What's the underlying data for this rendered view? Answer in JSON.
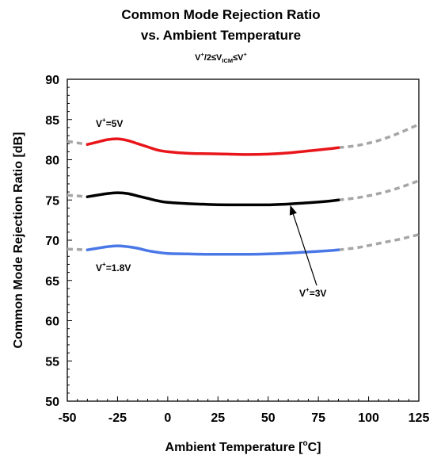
{
  "chart_data": {
    "type": "line",
    "title_line1": "Common Mode Rejection Ratio",
    "title_line2": "vs. Ambient Temperature",
    "subtitle": {
      "p1": "V",
      "p2": "+",
      "p3": "/2≤V",
      "p4": "ICM",
      "p5": "≤V",
      "p6": "+"
    },
    "xlabel": {
      "main": "Ambient Temperature [",
      "sup": "o",
      "tail": "C]"
    },
    "ylabel": "Common Mode Rejection Ratio [dB]",
    "xlim": [
      -50,
      125
    ],
    "ylim": [
      50,
      90
    ],
    "xticks": [
      "-50",
      "-25",
      "0",
      "25",
      "50",
      "75",
      "100",
      "125"
    ],
    "yticks": [
      "50",
      "55",
      "60",
      "65",
      "70",
      "75",
      "80",
      "85",
      "90"
    ],
    "grid": false,
    "series": [
      {
        "name": "V+=5V",
        "color": "#e8161b",
        "x": [
          -40,
          -35,
          -30,
          -25,
          -20,
          -15,
          -10,
          -5,
          0,
          10,
          20,
          30,
          40,
          50,
          60,
          70,
          80,
          85
        ],
        "y": [
          81.9,
          82.2,
          82.5,
          82.6,
          82.4,
          82.0,
          81.6,
          81.2,
          81.0,
          80.8,
          80.75,
          80.7,
          80.65,
          80.7,
          80.85,
          81.1,
          81.35,
          81.5
        ],
        "extrap_low": {
          "x": [
            -50,
            -45,
            -40
          ],
          "y": [
            82.3,
            82.1,
            81.9
          ]
        },
        "extrap_high": {
          "x": [
            85,
            95,
            105,
            115,
            125
          ],
          "y": [
            81.5,
            81.8,
            82.4,
            83.3,
            84.4
          ]
        }
      },
      {
        "name": "V+=3V",
        "color": "#000000",
        "x": [
          -40,
          -35,
          -30,
          -25,
          -20,
          -15,
          -10,
          -5,
          0,
          10,
          20,
          30,
          40,
          50,
          60,
          70,
          80,
          85
        ],
        "y": [
          75.4,
          75.6,
          75.8,
          75.9,
          75.8,
          75.5,
          75.2,
          74.9,
          74.7,
          74.55,
          74.45,
          74.4,
          74.4,
          74.4,
          74.5,
          74.65,
          74.85,
          75.0
        ],
        "extrap_low": {
          "x": [
            -50,
            -45,
            -40
          ],
          "y": [
            75.6,
            75.5,
            75.4
          ]
        },
        "extrap_high": {
          "x": [
            85,
            95,
            105,
            115,
            125
          ],
          "y": [
            75.0,
            75.3,
            75.8,
            76.5,
            77.4
          ]
        }
      },
      {
        "name": "V+=1.8V",
        "color": "#4a78e6",
        "x": [
          -40,
          -35,
          -30,
          -25,
          -20,
          -15,
          -10,
          -5,
          0,
          10,
          20,
          30,
          40,
          50,
          60,
          70,
          80,
          85
        ],
        "y": [
          68.8,
          69.0,
          69.2,
          69.3,
          69.2,
          69.0,
          68.7,
          68.5,
          68.35,
          68.3,
          68.25,
          68.25,
          68.25,
          68.3,
          68.4,
          68.55,
          68.7,
          68.8
        ],
        "extrap_low": {
          "x": [
            -50,
            -45,
            -40
          ],
          "y": [
            68.9,
            68.85,
            68.8
          ]
        },
        "extrap_high": {
          "x": [
            85,
            95,
            105,
            115,
            125
          ],
          "y": [
            68.8,
            69.1,
            69.6,
            70.1,
            70.7
          ]
        }
      }
    ],
    "annotations": {
      "a5v": {
        "p1": "V",
        "p2": "+",
        "p3": "=5V"
      },
      "a18v": {
        "p1": "V",
        "p2": "+",
        "p3": "=1.8V"
      },
      "a3v": {
        "p1": "V",
        "p2": "+",
        "p3": "=3V"
      }
    }
  }
}
